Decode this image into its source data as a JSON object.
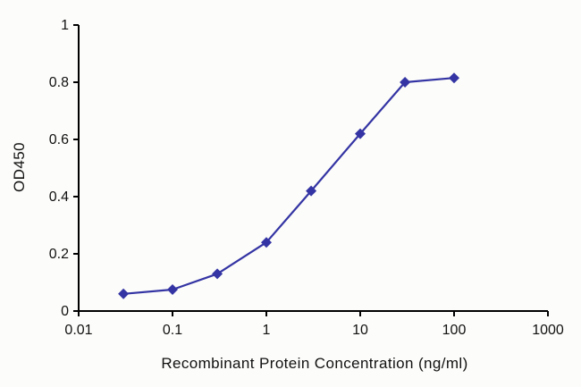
{
  "chart_data": {
    "type": "line",
    "title": "",
    "xlabel": "Recombinant Protein Concentration (ng/ml)",
    "ylabel": "OD450",
    "x_scale": "log",
    "xlim": [
      0.01,
      1000
    ],
    "ylim": [
      0,
      1
    ],
    "x_ticks": [
      0.01,
      0.1,
      1,
      10,
      100,
      1000
    ],
    "x_tick_labels": [
      "0.01",
      "0.1",
      "1",
      "10",
      "100",
      "1000"
    ],
    "y_ticks": [
      0,
      0.2,
      0.4,
      0.6,
      0.8,
      1
    ],
    "y_tick_labels": [
      "0",
      "0.2",
      "0.4",
      "0.6",
      "0.8",
      "1"
    ],
    "grid": false,
    "legend": "none",
    "series": [
      {
        "name": "OD450",
        "color": "#3434a4",
        "marker": "diamond",
        "x": [
          0.03,
          0.1,
          0.3,
          1,
          3,
          10,
          30,
          100
        ],
        "y": [
          0.06,
          0.075,
          0.13,
          0.24,
          0.42,
          0.62,
          0.8,
          0.815
        ]
      }
    ],
    "colors": {
      "axis": "#000000",
      "text": "#111111",
      "background": "#fcfcfa"
    }
  }
}
